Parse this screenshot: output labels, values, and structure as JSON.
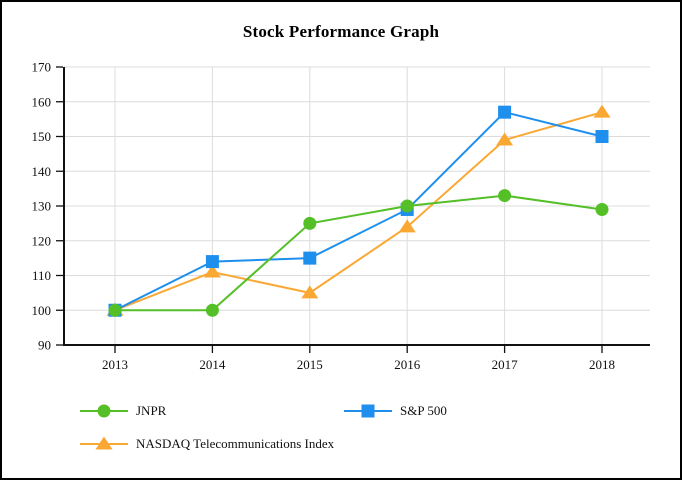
{
  "title": "Stock Performance Graph",
  "chart_data": {
    "type": "line",
    "title": "Stock Performance Graph",
    "xlabel": "",
    "ylabel": "",
    "x_labels": [
      "2013",
      "2014",
      "2015",
      "2016",
      "2017",
      "2018"
    ],
    "ylim": [
      90,
      170
    ],
    "yticks": [
      90,
      100,
      110,
      120,
      130,
      140,
      150,
      160,
      170
    ],
    "grid": true,
    "legend_position": "bottom-left",
    "series": [
      {
        "name": "JNPR",
        "marker": "circle",
        "color": "#55bf28",
        "values": [
          100,
          100,
          125,
          130,
          133,
          129
        ]
      },
      {
        "name": "S&P 500",
        "marker": "square",
        "color": "#1f8fee",
        "values": [
          100,
          114,
          115,
          129,
          157,
          150
        ]
      },
      {
        "name": "NASDAQ Telecommunications Index",
        "marker": "triangle",
        "color": "#faa834",
        "values": [
          100,
          111,
          105,
          124,
          149,
          157
        ]
      }
    ]
  },
  "style_colors": {
    "axis": "#111111",
    "gridline": "#dcdcdc",
    "background": "#ffffff"
  }
}
